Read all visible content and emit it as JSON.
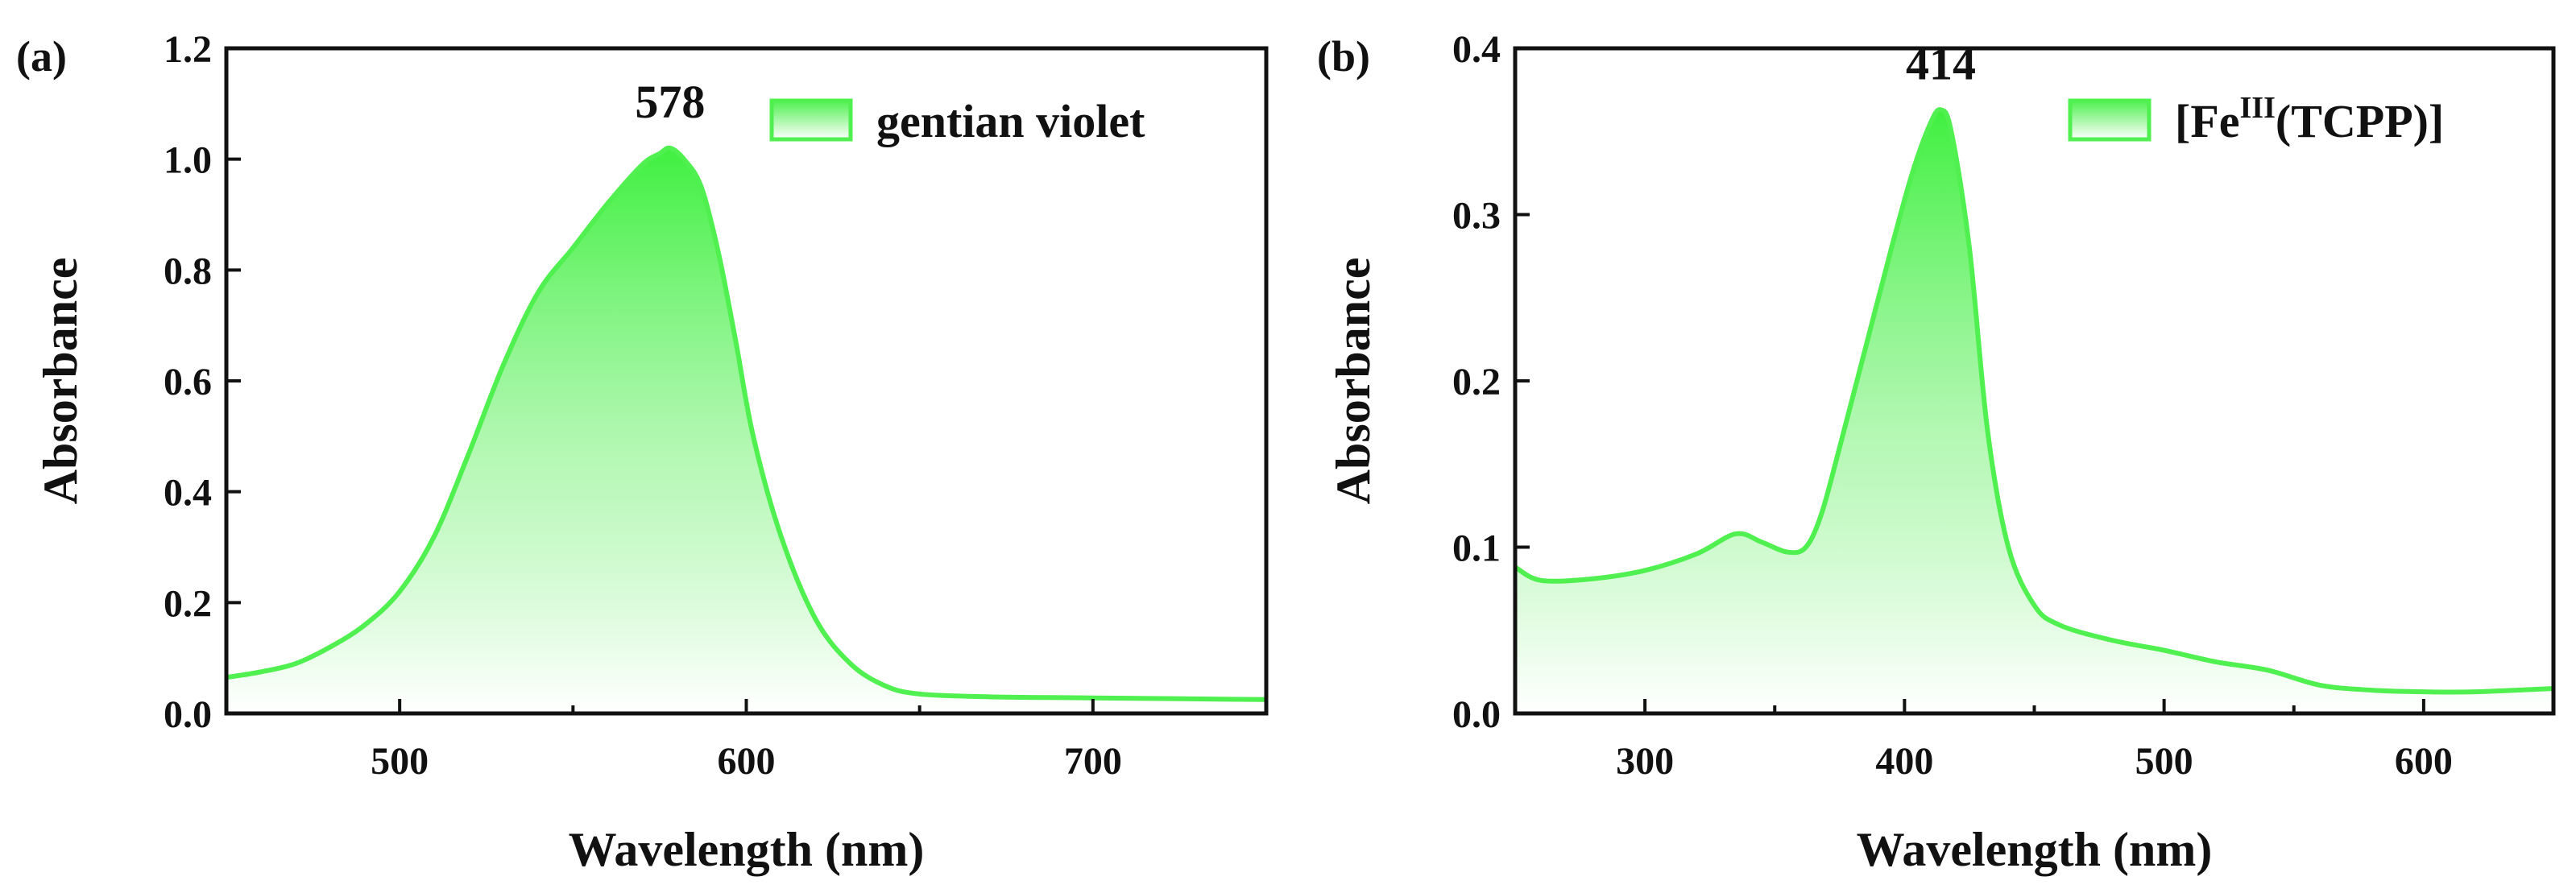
{
  "chart_data": [
    {
      "type": "area",
      "panel_label": "(a)",
      "xlabel": "Wavelength (nm)",
      "ylabel": "Absorbance",
      "xlim": [
        450,
        750
      ],
      "ylim": [
        0.0,
        1.2
      ],
      "xticks": [
        500,
        600,
        700
      ],
      "yticks": [
        0.0,
        0.2,
        0.4,
        0.6,
        0.8,
        1.0,
        1.2
      ],
      "ytick_labels": [
        "0.0",
        "0.2",
        "0.4",
        "0.6",
        "0.8",
        "1.0",
        "1.2"
      ],
      "legend_position": "top-right",
      "series": [
        {
          "name": "gentian violet",
          "color": "#4ff04f",
          "x": [
            450,
            460,
            470,
            480,
            490,
            500,
            510,
            520,
            530,
            540,
            550,
            560,
            570,
            575,
            578,
            582,
            587,
            592,
            597,
            602,
            610,
            620,
            630,
            640,
            650,
            670,
            700,
            750
          ],
          "y": [
            0.065,
            0.075,
            0.09,
            0.12,
            0.16,
            0.22,
            0.32,
            0.47,
            0.63,
            0.76,
            0.84,
            0.92,
            0.99,
            1.01,
            1.02,
            1.0,
            0.95,
            0.83,
            0.67,
            0.5,
            0.32,
            0.17,
            0.09,
            0.05,
            0.035,
            0.03,
            0.028,
            0.025
          ]
        }
      ],
      "annotations": [
        {
          "text": "578",
          "x": 578,
          "y": 1.02
        }
      ]
    },
    {
      "type": "area",
      "panel_label": "(b)",
      "xlabel": "Wavelength (nm)",
      "ylabel": "Absorbance",
      "xlim": [
        250,
        650
      ],
      "ylim": [
        0.0,
        0.4
      ],
      "xticks": [
        300,
        400,
        500,
        600
      ],
      "yticks": [
        0.0,
        0.1,
        0.2,
        0.3,
        0.4
      ],
      "ytick_labels": [
        "0.0",
        "0.1",
        "0.2",
        "0.3",
        "0.4"
      ],
      "legend_position": "top-right",
      "series": [
        {
          "name": "[Fe",
          "name_superscript": "III",
          "name_suffix": "(TCPP)]",
          "color": "#4ff04f",
          "x": [
            250,
            260,
            280,
            300,
            320,
            335,
            345,
            355,
            362,
            368,
            375,
            385,
            395,
            403,
            410,
            414,
            418,
            425,
            432,
            440,
            450,
            460,
            480,
            500,
            520,
            540,
            560,
            580,
            600,
            620,
            650
          ],
          "y": [
            0.088,
            0.08,
            0.081,
            0.086,
            0.096,
            0.108,
            0.103,
            0.097,
            0.1,
            0.12,
            0.16,
            0.22,
            0.28,
            0.325,
            0.355,
            0.363,
            0.35,
            0.28,
            0.17,
            0.1,
            0.065,
            0.053,
            0.044,
            0.038,
            0.031,
            0.026,
            0.017,
            0.014,
            0.013,
            0.013,
            0.015
          ]
        }
      ],
      "annotations": [
        {
          "text": "414",
          "x": 414,
          "y": 0.363
        }
      ]
    }
  ]
}
